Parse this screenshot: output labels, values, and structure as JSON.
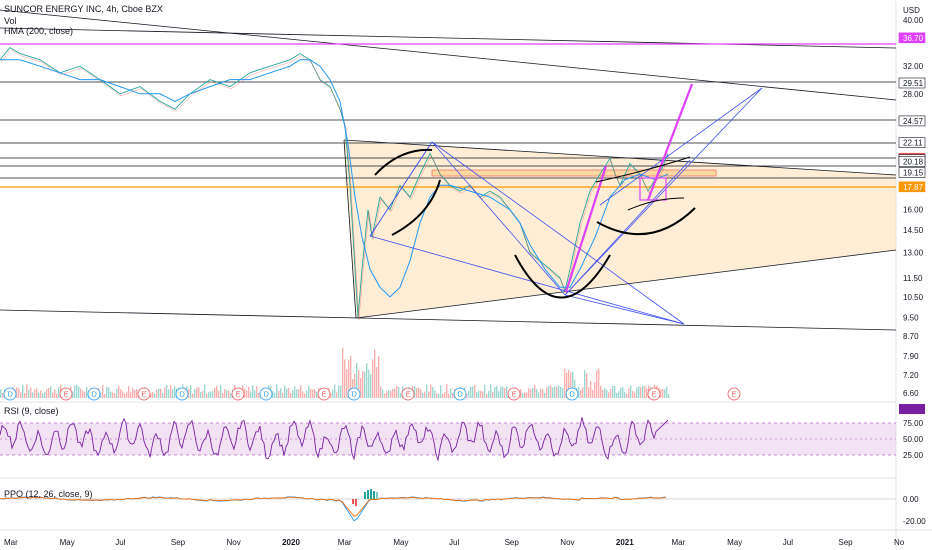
{
  "header": {
    "symbol_line": "SUNCOR ENERGY INC, 4h, Cboe BZX",
    "vol_label": "Vol",
    "hma_label": "HMA (200, close)",
    "rsi_label": "RSI (9, close)",
    "ppo_label": "PPO (12, 26, close, 9)"
  },
  "chart_data": {
    "type": "line",
    "title": "SUNCOR ENERGY INC, 4h, Cboe BZX",
    "currency": "USD",
    "price_axis": {
      "scale": "log",
      "ticks": [
        "40.00",
        "32.00",
        "28.00",
        "16.00",
        "14.50",
        "13.00",
        "11.50",
        "10.50",
        "9.50",
        "8.70",
        "7.90",
        "7.20",
        "6.60"
      ]
    },
    "price_tags": [
      {
        "label": "36.70",
        "color": "#e040fb"
      },
      {
        "label": "29.51",
        "color": "#ffffff"
      },
      {
        "label": "24.57",
        "color": "#ffffff"
      },
      {
        "label": "22.11",
        "color": "#ffffff"
      },
      {
        "label": "20.52",
        "color": "#ef5350"
      },
      {
        "label": "20.38",
        "color": "#ffffff"
      },
      {
        "label": "20.18",
        "color": "#ffffff"
      },
      {
        "label": "19.15",
        "color": "#ffffff"
      },
      {
        "label": "17.87",
        "color": "#ff9800"
      }
    ],
    "time_axis": [
      "Mar",
      "May",
      "Jul",
      "Sep",
      "Nov",
      "2020",
      "Mar",
      "May",
      "Jul",
      "Sep",
      "Nov",
      "2021",
      "Mar",
      "May",
      "Jul",
      "Sep",
      "No"
    ],
    "price_series": {
      "name": "price",
      "points": [
        [
          0,
          33
        ],
        [
          10,
          35
        ],
        [
          20,
          34
        ],
        [
          40,
          33
        ],
        [
          60,
          31
        ],
        [
          80,
          32
        ],
        [
          100,
          30
        ],
        [
          120,
          28
        ],
        [
          140,
          29
        ],
        [
          160,
          27
        ],
        [
          175,
          26
        ],
        [
          190,
          28
        ],
        [
          210,
          30
        ],
        [
          230,
          29
        ],
        [
          250,
          31
        ],
        [
          270,
          32
        ],
        [
          290,
          33
        ],
        [
          300,
          34
        ],
        [
          310,
          33
        ],
        [
          320,
          30
        ],
        [
          330,
          29
        ],
        [
          340,
          26
        ],
        [
          345,
          24
        ],
        [
          350,
          18
        ],
        [
          355,
          12
        ],
        [
          358,
          9.5
        ],
        [
          362,
          12
        ],
        [
          368,
          16
        ],
        [
          372,
          14
        ],
        [
          380,
          17
        ],
        [
          390,
          16
        ],
        [
          400,
          18
        ],
        [
          410,
          17
        ],
        [
          420,
          19
        ],
        [
          430,
          21
        ],
        [
          435,
          20
        ],
        [
          440,
          19
        ],
        [
          450,
          18
        ],
        [
          460,
          17.5
        ],
        [
          470,
          18
        ],
        [
          480,
          17
        ],
        [
          490,
          17.5
        ],
        [
          500,
          17
        ],
        [
          510,
          16
        ],
        [
          520,
          15
        ],
        [
          530,
          13
        ],
        [
          540,
          12.5
        ],
        [
          550,
          12
        ],
        [
          560,
          11.5
        ],
        [
          565,
          10.8
        ],
        [
          570,
          12
        ],
        [
          580,
          15
        ],
        [
          590,
          17.5
        ],
        [
          600,
          19
        ],
        [
          610,
          20.5
        ],
        [
          615,
          19
        ],
        [
          620,
          18
        ],
        [
          625,
          19
        ],
        [
          630,
          20
        ],
        [
          640,
          19
        ],
        [
          648,
          17.5
        ],
        [
          655,
          18.5
        ],
        [
          662,
          19.5
        ],
        [
          668,
          21
        ]
      ]
    },
    "hma_series": {
      "name": "HMA (200, close)",
      "points": [
        [
          0,
          33
        ],
        [
          20,
          33
        ],
        [
          40,
          32
        ],
        [
          60,
          31
        ],
        [
          80,
          30
        ],
        [
          100,
          30
        ],
        [
          120,
          29
        ],
        [
          140,
          28
        ],
        [
          160,
          28
        ],
        [
          175,
          27
        ],
        [
          190,
          28
        ],
        [
          210,
          29
        ],
        [
          230,
          30
        ],
        [
          250,
          30
        ],
        [
          270,
          31
        ],
        [
          290,
          32
        ],
        [
          300,
          33
        ],
        [
          310,
          33
        ],
        [
          320,
          32
        ],
        [
          330,
          30
        ],
        [
          340,
          27
        ],
        [
          348,
          22
        ],
        [
          355,
          17
        ],
        [
          362,
          14
        ],
        [
          370,
          12
        ],
        [
          380,
          11
        ],
        [
          390,
          10.5
        ],
        [
          400,
          11
        ],
        [
          410,
          12.5
        ],
        [
          420,
          15
        ],
        [
          430,
          17
        ],
        [
          440,
          18
        ],
        [
          450,
          18
        ],
        [
          470,
          17.5
        ],
        [
          490,
          17
        ],
        [
          510,
          16
        ],
        [
          520,
          15
        ],
        [
          530,
          13.5
        ],
        [
          545,
          12
        ],
        [
          560,
          11
        ],
        [
          570,
          11
        ],
        [
          580,
          12
        ],
        [
          595,
          14
        ],
        [
          610,
          17
        ],
        [
          625,
          18.5
        ],
        [
          640,
          19
        ],
        [
          655,
          18.5
        ],
        [
          668,
          19
        ]
      ]
    },
    "rsi": {
      "ticks": [
        "75.00",
        "50.00",
        "25.00"
      ],
      "band": [
        30,
        70
      ],
      "last": 80
    },
    "ppo": {
      "ticks": [
        "0.00",
        "-20.00"
      ],
      "min": -25
    },
    "earnings_markers": [
      "D",
      "E",
      "D",
      "E",
      "D",
      "E",
      "D",
      "E",
      "D",
      "E",
      "D",
      "E",
      "D",
      "E",
      "E"
    ]
  }
}
